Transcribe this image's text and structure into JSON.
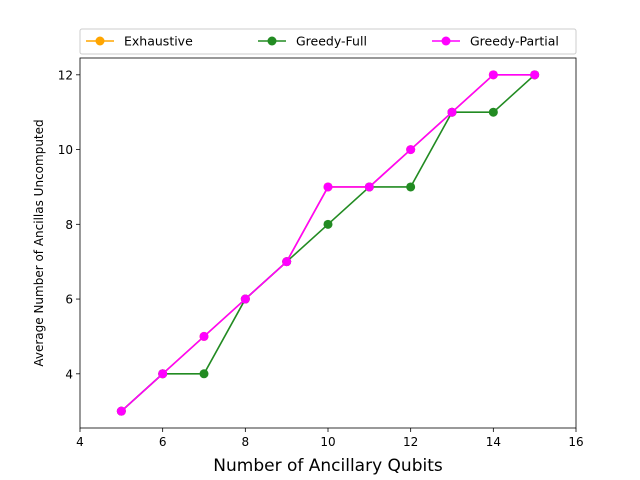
{
  "chart_data": {
    "type": "line",
    "xlabel": "Number of Ancillary Qubits",
    "ylabel": "Average Number of Ancillas Uncomputed",
    "xlim": [
      4,
      16
    ],
    "ylim": [
      2.55,
      12.45
    ],
    "xticks": [
      4,
      6,
      8,
      10,
      12,
      14,
      16
    ],
    "yticks": [
      4,
      6,
      8,
      10,
      12
    ],
    "grid": false,
    "legend_position": "top",
    "x": [
      5,
      6,
      7,
      8,
      9,
      10,
      11,
      12,
      13,
      14,
      15
    ],
    "series": [
      {
        "name": "Exhaustive",
        "color": "#ffa500",
        "marker": "circle",
        "values": [
          3,
          4,
          5,
          6,
          7,
          9,
          9,
          10,
          11,
          12,
          12
        ]
      },
      {
        "name": "Greedy-Full",
        "color": "#228b22",
        "marker": "circle",
        "values": [
          3,
          4,
          4,
          6,
          7,
          8,
          9,
          9,
          11,
          11,
          12
        ]
      },
      {
        "name": "Greedy-Partial",
        "color": "#ff00ff",
        "marker": "circle",
        "values": [
          3,
          4,
          5,
          6,
          7,
          9,
          9,
          10,
          11,
          12,
          12
        ]
      }
    ]
  }
}
